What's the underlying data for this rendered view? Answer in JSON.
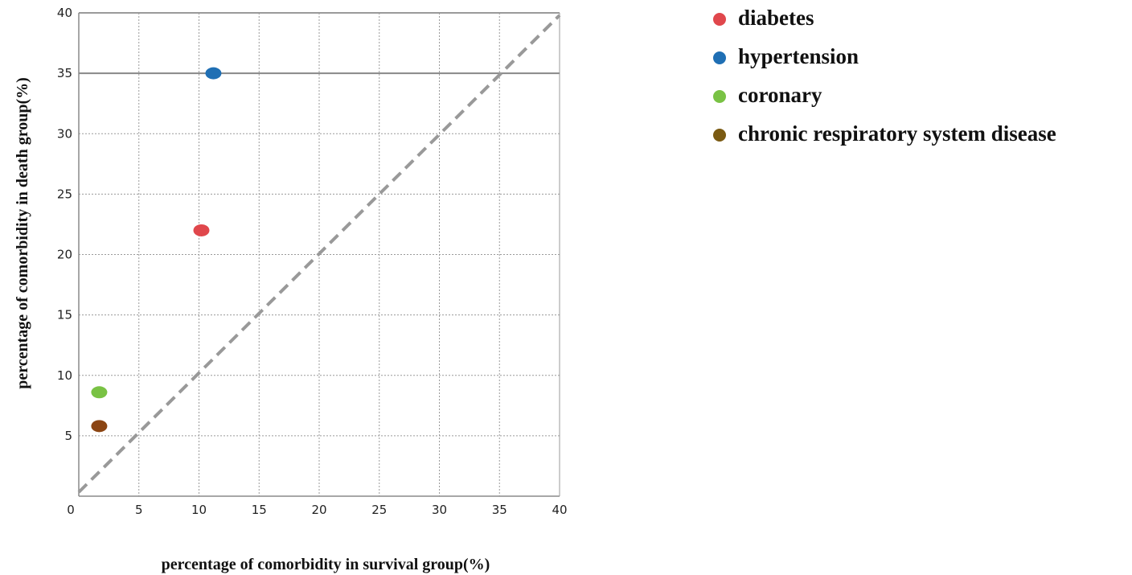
{
  "chart_data": {
    "type": "scatter",
    "xlabel": "percentage of comorbidity in survival group(%)",
    "ylabel": "percentage of comorbidity in death group(%)",
    "xlim": [
      0,
      40
    ],
    "ylim": [
      0,
      40
    ],
    "x_ticks": [
      "0",
      "5",
      "10",
      "15",
      "20",
      "25",
      "30",
      "35",
      "40"
    ],
    "y_ticks": [
      "5",
      "10",
      "15",
      "20",
      "25",
      "30",
      "35",
      "40"
    ],
    "grid": true,
    "legend_position": "right",
    "reference_line": {
      "from": [
        0,
        0
      ],
      "to": [
        40,
        40
      ],
      "style": "dashed",
      "color": "#999999"
    },
    "series": [
      {
        "name": "diabetes",
        "color": "#e0474c",
        "x": 10.2,
        "y": 22
      },
      {
        "name": "hypertension",
        "color": "#1f6fb4",
        "x": 11.2,
        "y": 35
      },
      {
        "name": "coronary",
        "color": "#79c244",
        "x": 1.7,
        "y": 8.6
      },
      {
        "name": "chronic respiratory system disease",
        "color": "#8b4513",
        "x": 1.7,
        "y": 5.8
      }
    ],
    "legend_marker_colors": [
      "#e0474c",
      "#1f6fb4",
      "#79c244",
      "#7a5a12"
    ]
  }
}
